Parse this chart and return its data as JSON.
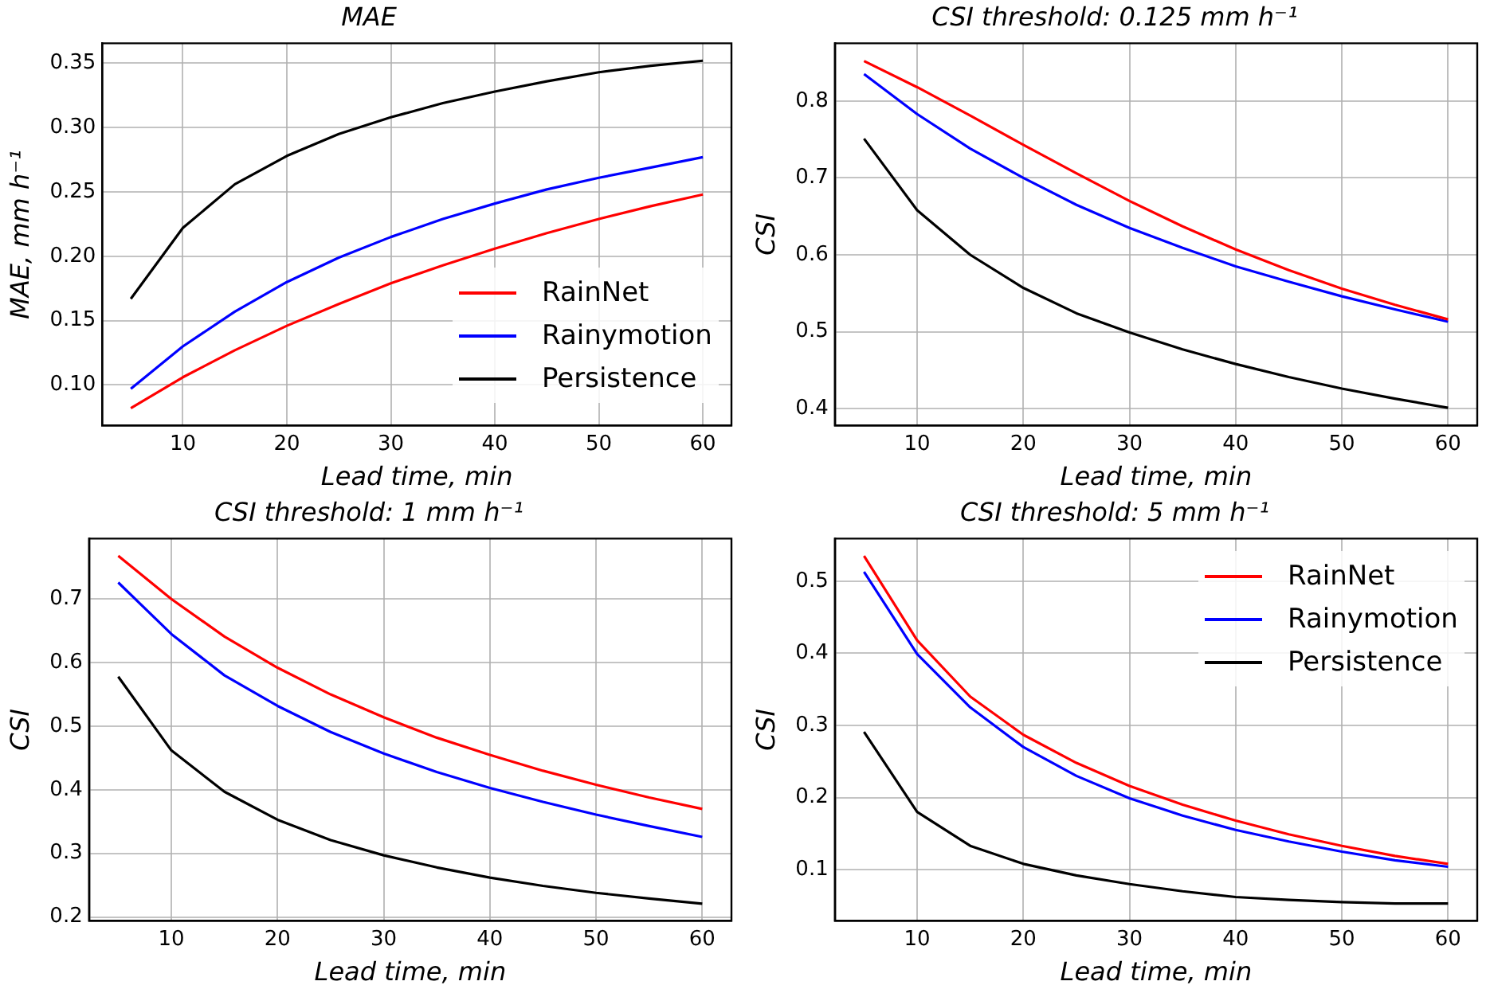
{
  "chart_data": [
    {
      "type": "line",
      "title": "MAE",
      "xlabel": "Lead time, min",
      "ylabel": "MAE, mm h⁻¹",
      "x": [
        5,
        10,
        15,
        20,
        25,
        30,
        35,
        40,
        45,
        50,
        55,
        60
      ],
      "xlim": [
        2.25,
        62.75
      ],
      "xticks": [
        10,
        20,
        30,
        40,
        50,
        60
      ],
      "ylim": [
        0.0685,
        0.3655
      ],
      "yticks": [
        {
          "value": 0.1,
          "label": "0.10"
        },
        {
          "value": 0.15,
          "label": "0.15"
        },
        {
          "value": 0.2,
          "label": "0.20"
        },
        {
          "value": 0.25,
          "label": "0.25"
        },
        {
          "value": 0.3,
          "label": "0.30"
        },
        {
          "value": 0.35,
          "label": "0.35"
        }
      ],
      "grid": true,
      "legend": "bottom right",
      "series": [
        {
          "name": "RainNet",
          "color": "#ff0000",
          "values": [
            0.082,
            0.106,
            0.127,
            0.146,
            0.163,
            0.179,
            0.193,
            0.206,
            0.218,
            0.229,
            0.239,
            0.248
          ]
        },
        {
          "name": "Rainymotion",
          "color": "#0000ff",
          "values": [
            0.097,
            0.13,
            0.157,
            0.18,
            0.199,
            0.215,
            0.229,
            0.241,
            0.252,
            0.261,
            0.269,
            0.277
          ]
        },
        {
          "name": "Persistence",
          "color": "#000000",
          "values": [
            0.167,
            0.222,
            0.256,
            0.278,
            0.295,
            0.308,
            0.319,
            0.328,
            0.336,
            0.343,
            0.348,
            0.352
          ]
        }
      ]
    },
    {
      "type": "line",
      "title": "CSI threshold: 0.125 mm h⁻¹",
      "xlabel": "Lead time, min",
      "ylabel": "CSI",
      "x": [
        5,
        10,
        15,
        20,
        25,
        30,
        35,
        40,
        45,
        50,
        55,
        60
      ],
      "xlim": [
        2.25,
        62.75
      ],
      "xticks": [
        10,
        20,
        30,
        40,
        50,
        60
      ],
      "ylim": [
        0.378,
        0.875
      ],
      "yticks": [
        0.4,
        0.5,
        0.6,
        0.7,
        0.8
      ],
      "grid": true,
      "series": [
        {
          "color": "#ff0000",
          "values": [
            0.852,
            0.818,
            0.781,
            0.743,
            0.706,
            0.67,
            0.637,
            0.607,
            0.58,
            0.556,
            0.535,
            0.516
          ]
        },
        {
          "color": "#0000ff",
          "values": [
            0.835,
            0.783,
            0.738,
            0.7,
            0.665,
            0.635,
            0.609,
            0.585,
            0.565,
            0.546,
            0.529,
            0.513
          ]
        },
        {
          "color": "#000000",
          "values": [
            0.751,
            0.658,
            0.6,
            0.557,
            0.524,
            0.499,
            0.477,
            0.458,
            0.441,
            0.426,
            0.413,
            0.401
          ]
        }
      ]
    },
    {
      "type": "line",
      "title": "CSI threshold: 1 mm h⁻¹",
      "xlabel": "Lead time, min",
      "ylabel": "CSI",
      "x": [
        5,
        10,
        15,
        20,
        25,
        30,
        35,
        40,
        45,
        50,
        55,
        60
      ],
      "xlim": [
        2.25,
        62.75
      ],
      "xticks": [
        10,
        20,
        30,
        40,
        50,
        60
      ],
      "ylim": [
        0.194,
        0.795
      ],
      "yticks": [
        0.2,
        0.3,
        0.4,
        0.5,
        0.6,
        0.7
      ],
      "grid": true,
      "series": [
        {
          "color": "#ff0000",
          "values": [
            0.768,
            0.7,
            0.641,
            0.592,
            0.55,
            0.514,
            0.482,
            0.455,
            0.43,
            0.408,
            0.388,
            0.37
          ]
        },
        {
          "color": "#0000ff",
          "values": [
            0.726,
            0.645,
            0.58,
            0.532,
            0.491,
            0.457,
            0.428,
            0.403,
            0.381,
            0.361,
            0.343,
            0.326
          ]
        },
        {
          "color": "#000000",
          "values": [
            0.578,
            0.462,
            0.397,
            0.353,
            0.321,
            0.297,
            0.278,
            0.262,
            0.249,
            0.238,
            0.229,
            0.221
          ]
        }
      ]
    },
    {
      "type": "line",
      "title": "CSI threshold: 5 mm h⁻¹",
      "xlabel": "Lead time, min",
      "ylabel": "CSI",
      "x": [
        5,
        10,
        15,
        20,
        25,
        30,
        35,
        40,
        45,
        50,
        55,
        60
      ],
      "xlim": [
        2.25,
        62.75
      ],
      "xticks": [
        10,
        20,
        30,
        40,
        50,
        60
      ],
      "ylim": [
        0.029,
        0.559
      ],
      "yticks": [
        0.1,
        0.2,
        0.3,
        0.4,
        0.5
      ],
      "grid": true,
      "legend": "top right",
      "series": [
        {
          "name": "RainNet",
          "color": "#ff0000",
          "values": [
            0.535,
            0.418,
            0.34,
            0.287,
            0.248,
            0.216,
            0.19,
            0.168,
            0.149,
            0.133,
            0.119,
            0.108
          ]
        },
        {
          "name": "Rainymotion",
          "color": "#0000ff",
          "values": [
            0.513,
            0.399,
            0.325,
            0.27,
            0.23,
            0.199,
            0.175,
            0.155,
            0.139,
            0.125,
            0.113,
            0.104
          ]
        },
        {
          "name": "Persistence",
          "color": "#000000",
          "values": [
            0.291,
            0.18,
            0.133,
            0.108,
            0.092,
            0.08,
            0.07,
            0.062,
            0.058,
            0.055,
            0.053,
            0.053
          ]
        }
      ]
    }
  ]
}
